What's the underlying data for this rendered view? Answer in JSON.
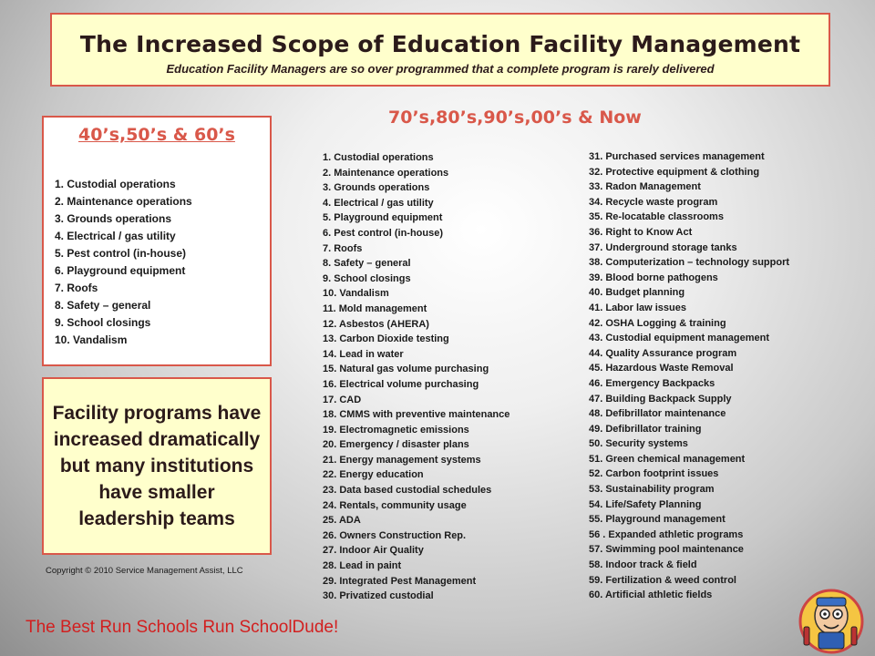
{
  "header": {
    "title": "The Increased Scope of Education Facility Management",
    "subtitle": "Education Facility Managers are so over programmed that a complete program is rarely delivered"
  },
  "left_panel": {
    "heading": "40’s,50’s & 60’s",
    "items": [
      "1.   Custodial operations",
      "2.   Maintenance operations",
      "3.   Grounds operations",
      "4.   Electrical / gas utility",
      "5.   Pest control (in-house)",
      "6.   Playground equipment",
      "7.   Roofs",
      "8.   Safety – general",
      "9.   School closings",
      "10.  Vandalism"
    ]
  },
  "callout": {
    "text": "Facility programs have increased dramatically but many institutions have smaller leadership teams"
  },
  "copyright": "Copyright © 2010 Service Management Assist, LLC",
  "right_panel": {
    "heading": "70’s,80’s,90’s,00’s & Now",
    "column1": [
      "1.  Custodial operations",
      "2.  Maintenance operations",
      "3.  Grounds operations",
      "4.  Electrical / gas utility",
      "5.  Playground equipment",
      "6.  Pest control (in-house)",
      "7.  Roofs",
      "8.  Safety – general",
      "9.  School closings",
      "10. Vandalism",
      "11. Mold management",
      "12. Asbestos (AHERA)",
      "13. Carbon Dioxide testing",
      "14. Lead in water",
      "15. Natural gas volume purchasing",
      "16. Electrical volume purchasing",
      "17. CAD",
      "18. CMMS with preventive maintenance",
      "19. Electromagnetic emissions",
      "20. Emergency / disaster plans",
      "21. Energy management systems",
      "22. Energy education",
      "23. Data based custodial schedules",
      "24. Rentals, community usage",
      "25.  ADA",
      "26.  Owners Construction Rep.",
      "27.  Indoor Air Quality",
      "28.  Lead in paint",
      "29.  Integrated Pest Management",
      "30.  Privatized custodial"
    ],
    "column2": [
      "31.  Purchased services management",
      "32.  Protective equipment & clothing",
      "33.  Radon Management",
      "34.  Recycle waste program",
      "35.  Re-locatable classrooms",
      "36.  Right to Know Act",
      "37.  Underground storage tanks",
      "38.  Computerization – technology support",
      "39.  Blood borne pathogens",
      "40.  Budget planning",
      "41.  Labor law issues",
      "42.  OSHA Logging & training",
      "43.  Custodial equipment management",
      "44.  Quality Assurance program",
      "45.  Hazardous Waste Removal",
      "46.  Emergency Backpacks",
      "47.  Building Backpack Supply",
      "48.  Defibrillator maintenance",
      "49.  Defibrillator training",
      "50.  Security systems",
      "51.  Green chemical management",
      "52.  Carbon footprint issues",
      "53.  Sustainability program",
      "54.   Life/Safety Planning",
      "55.   Playground management",
      "56 .  Expanded athletic programs",
      "57.   Swimming pool maintenance",
      "58.   Indoor track & field",
      "59.   Fertilization & weed control",
      "60.   Artificial athletic fields"
    ]
  },
  "footer": {
    "tagline": "The Best Run Schools Run SchoolDude!"
  },
  "colors": {
    "accent_red": "#d9584a",
    "tagline_red": "#d21f1f",
    "panel_yellow": "#ffffcc"
  },
  "icons": {
    "mascot": "schooldude-mascot-icon"
  }
}
